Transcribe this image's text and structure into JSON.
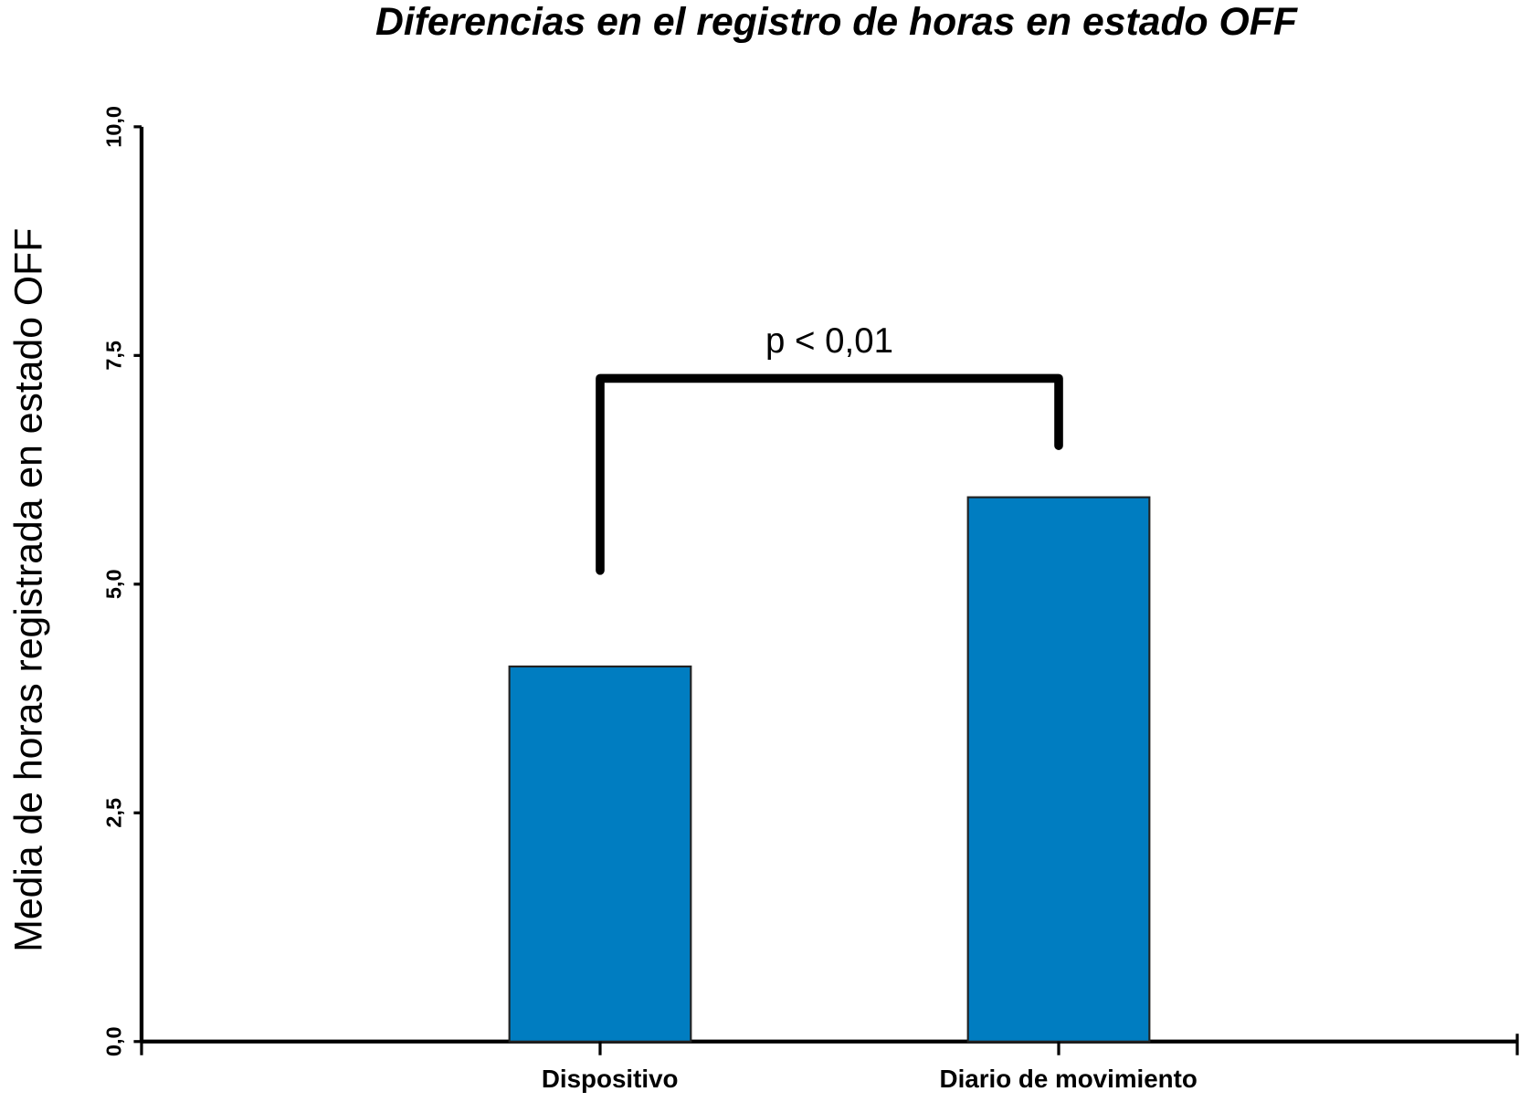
{
  "chart_data": {
    "type": "bar",
    "title": "Diferencias en el registro de horas en estado OFF",
    "y_label": "Media de horas registrada en estado OFF",
    "categories": [
      "Dispositivo",
      "Diario de movimiento"
    ],
    "values": [
      4.1,
      5.95
    ],
    "color": "#007dc1",
    "ylim": [
      0,
      10
    ],
    "yticks": [
      {
        "value": 0,
        "label": "0,0"
      },
      {
        "value": 2.5,
        "label": "2,5"
      },
      {
        "value": 5,
        "label": "5,0"
      },
      {
        "value": 7.5,
        "label": "7,5"
      },
      {
        "value": 10,
        "label": "10,0"
      }
    ],
    "annotation": "p < 0,01",
    "grid": false
  }
}
